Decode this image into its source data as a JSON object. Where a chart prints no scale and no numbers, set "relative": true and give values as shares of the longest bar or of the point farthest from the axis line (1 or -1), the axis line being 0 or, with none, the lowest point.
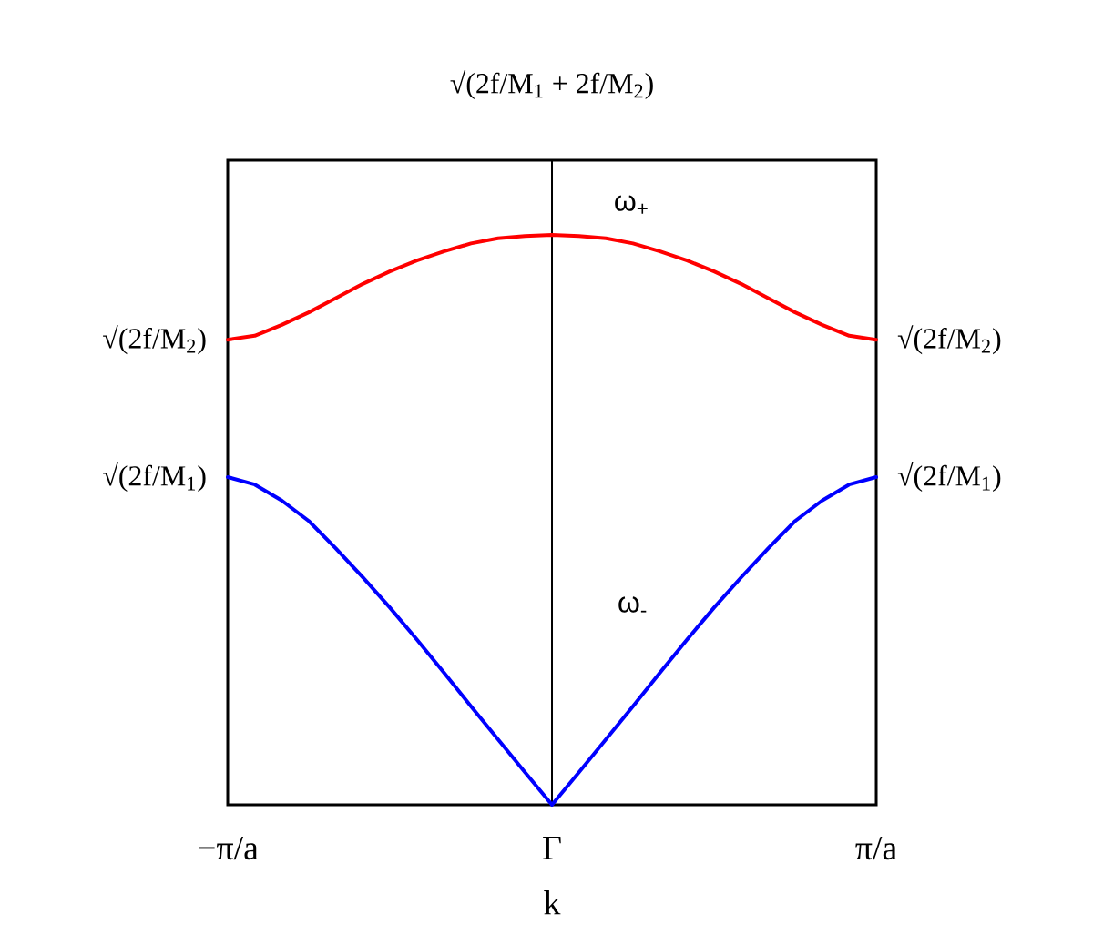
{
  "chart_data": {
    "type": "line",
    "relative": true,
    "xlabel": "k",
    "categories": [
      "−π/a",
      null,
      null,
      null,
      null,
      null,
      null,
      null,
      null,
      null,
      null,
      null,
      "Γ",
      null,
      null,
      null,
      null,
      null,
      null,
      null,
      null,
      null,
      null,
      null,
      "π/a"
    ],
    "line_style": "solid",
    "series": [
      {
        "name": "ω$_{+}$",
        "color": "#ff0000",
        "values": [
          0.816,
          0.823,
          0.842,
          0.864,
          0.889,
          0.914,
          0.936,
          0.955,
          0.971,
          0.985,
          0.994,
          0.998,
          1,
          0.998,
          0.994,
          0.985,
          0.971,
          0.955,
          0.936,
          0.914,
          0.889,
          0.864,
          0.842,
          0.823,
          0.816
        ]
      },
      {
        "name": "ω$_{-}$",
        "color": "#0000ff",
        "values": [
          0.575,
          0.562,
          0.534,
          0.498,
          0.45,
          0.399,
          0.346,
          0.29,
          0.232,
          0.173,
          0.115,
          0.057,
          0,
          0.057,
          0.115,
          0.173,
          0.232,
          0.29,
          0.346,
          0.399,
          0.45,
          0.498,
          0.534,
          0.562,
          0.575
        ]
      }
    ],
    "ref_lines": [
      {
        "axis": "x",
        "value": "Γ",
        "label": "√(2f/M$_{1}$ + 2f/M$_{2}$)",
        "color": "#000000"
      }
    ],
    "annotations": [
      {
        "text": "√(2f/M$_{2}$)",
        "x": "−π/a",
        "y": 0.816
      },
      {
        "text": "√(2f/M$_{2}$)",
        "x": "π/a",
        "y": 0.816
      },
      {
        "text": "√(2f/M$_{1}$)",
        "x": "−π/a",
        "y": 0.575
      },
      {
        "text": "√(2f/M$_{1}$)",
        "x": "π/a",
        "y": 0.575
      }
    ]
  }
}
